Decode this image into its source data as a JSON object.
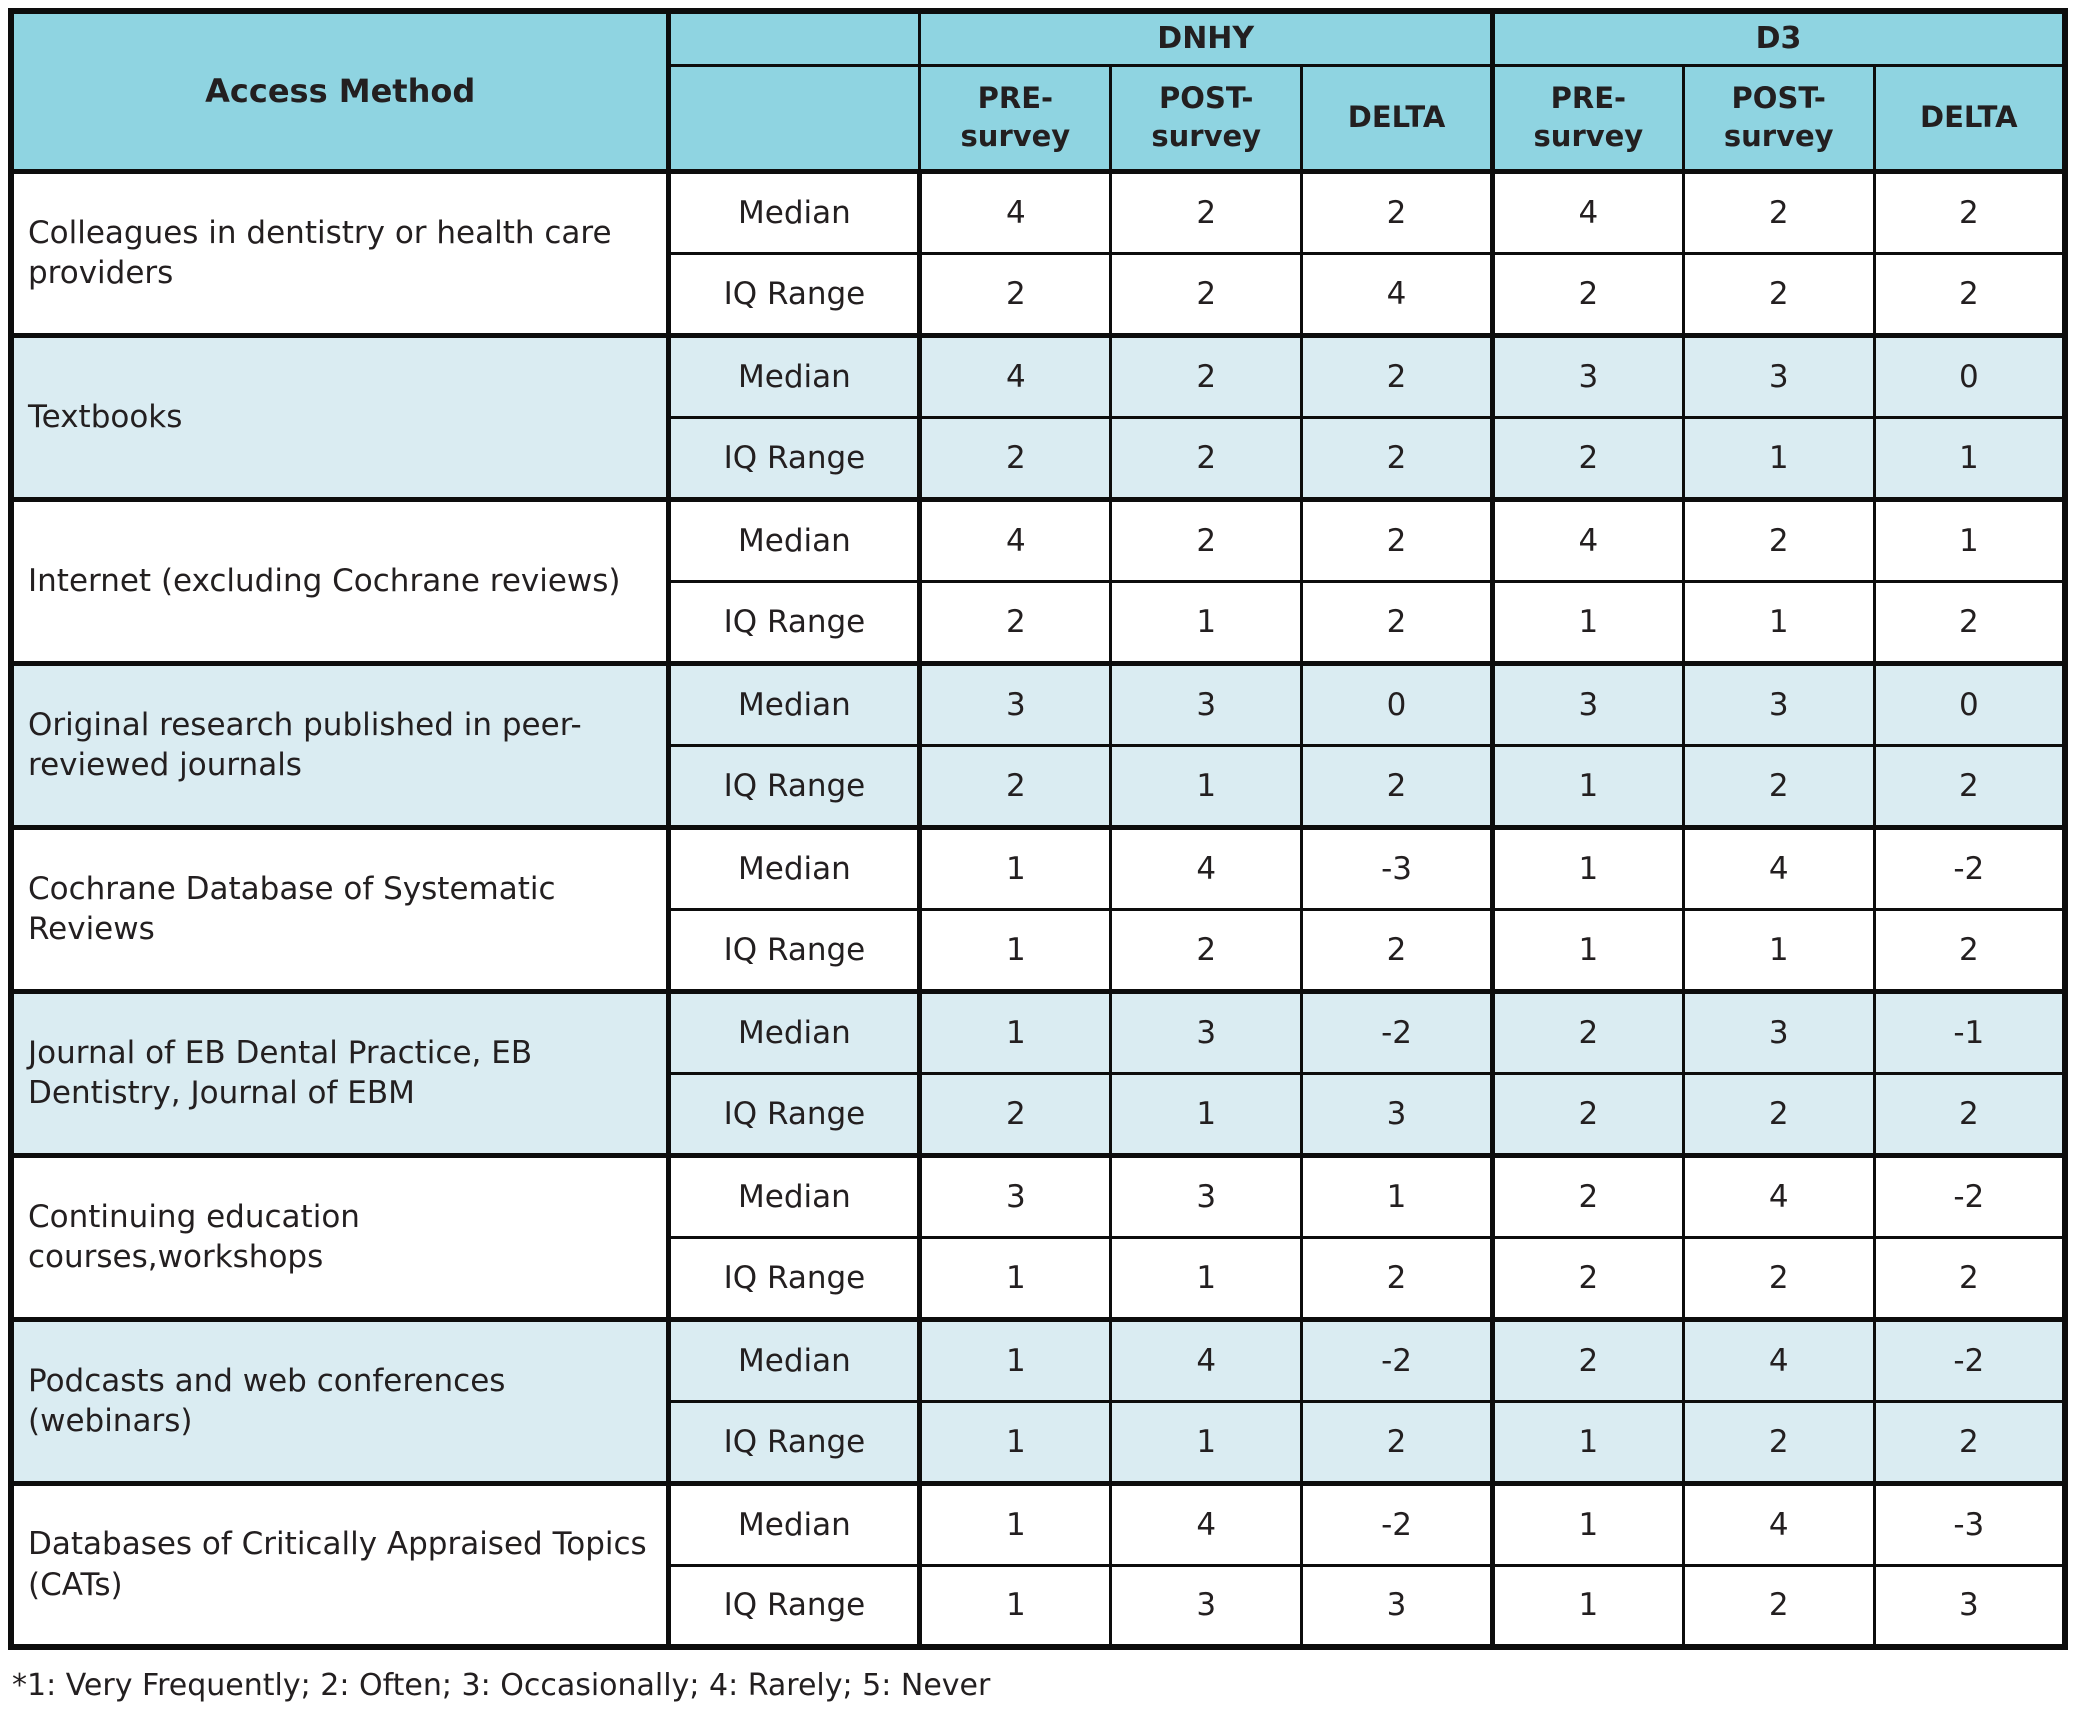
{
  "table": {
    "header": {
      "access_method": "Access Method",
      "group1": "DNHY",
      "group2": "D3",
      "sub": [
        "PRE-survey",
        "POST-survey",
        "DELTA",
        "PRE-survey",
        "POST-survey",
        "DELTA"
      ]
    },
    "stat_labels": {
      "median": "Median",
      "iq_range": "IQ Range"
    },
    "rows": [
      {
        "method": "Colleagues in dentistry or health care providers",
        "median": [
          "4",
          "2",
          "2",
          "4",
          "2",
          "2"
        ],
        "iq_range": [
          "2",
          "2",
          "4",
          "2",
          "2",
          "2"
        ]
      },
      {
        "method": "Textbooks",
        "median": [
          "4",
          "2",
          "2",
          "3",
          "3",
          "0"
        ],
        "iq_range": [
          "2",
          "2",
          "2",
          "2",
          "1",
          "1"
        ]
      },
      {
        "method": "Internet (excluding Cochrane reviews)",
        "median": [
          "4",
          "2",
          "2",
          "4",
          "2",
          "1"
        ],
        "iq_range": [
          "2",
          "1",
          "2",
          "1",
          "1",
          "2"
        ]
      },
      {
        "method": "Original research published in peer-reviewed journals",
        "median": [
          "3",
          "3",
          "0",
          "3",
          "3",
          "0"
        ],
        "iq_range": [
          "2",
          "1",
          "2",
          "1",
          "2",
          "2"
        ]
      },
      {
        "method": "Cochrane Database of Systematic Reviews",
        "median": [
          "1",
          "4",
          "-3",
          "1",
          "4",
          "-2"
        ],
        "iq_range": [
          "1",
          "2",
          "2",
          "1",
          "1",
          "2"
        ]
      },
      {
        "method": "Journal of EB Dental Practice, EB Dentistry, Journal of EBM",
        "median": [
          "1",
          "3",
          "-2",
          "2",
          "3",
          "-1"
        ],
        "iq_range": [
          "2",
          "1",
          "3",
          "2",
          "2",
          "2"
        ]
      },
      {
        "method": "Continuing education courses,workshops",
        "median": [
          "3",
          "3",
          "1",
          "2",
          "4",
          "-2"
        ],
        "iq_range": [
          "1",
          "1",
          "2",
          "2",
          "2",
          "2"
        ]
      },
      {
        "method": "Podcasts and web conferences (webinars)",
        "median": [
          "1",
          "4",
          "-2",
          "2",
          "4",
          "-2"
        ],
        "iq_range": [
          "1",
          "1",
          "2",
          "1",
          "2",
          "2"
        ]
      },
      {
        "method": "Databases of Critically Appraised Topics (CATs)",
        "median": [
          "1",
          "4",
          "-2",
          "1",
          "4",
          "-3"
        ],
        "iq_range": [
          "1",
          "3",
          "3",
          "1",
          "2",
          "3"
        ]
      }
    ]
  },
  "footnote": "*1: Very Frequently; 2: Often; 3: Occasionally; 4: Rarely; 5: Never",
  "colors": {
    "header_bg": "#8fd4e1",
    "row_alt_bg": "#daecf2",
    "border": "#0d0d0d",
    "text": "#231f20"
  }
}
